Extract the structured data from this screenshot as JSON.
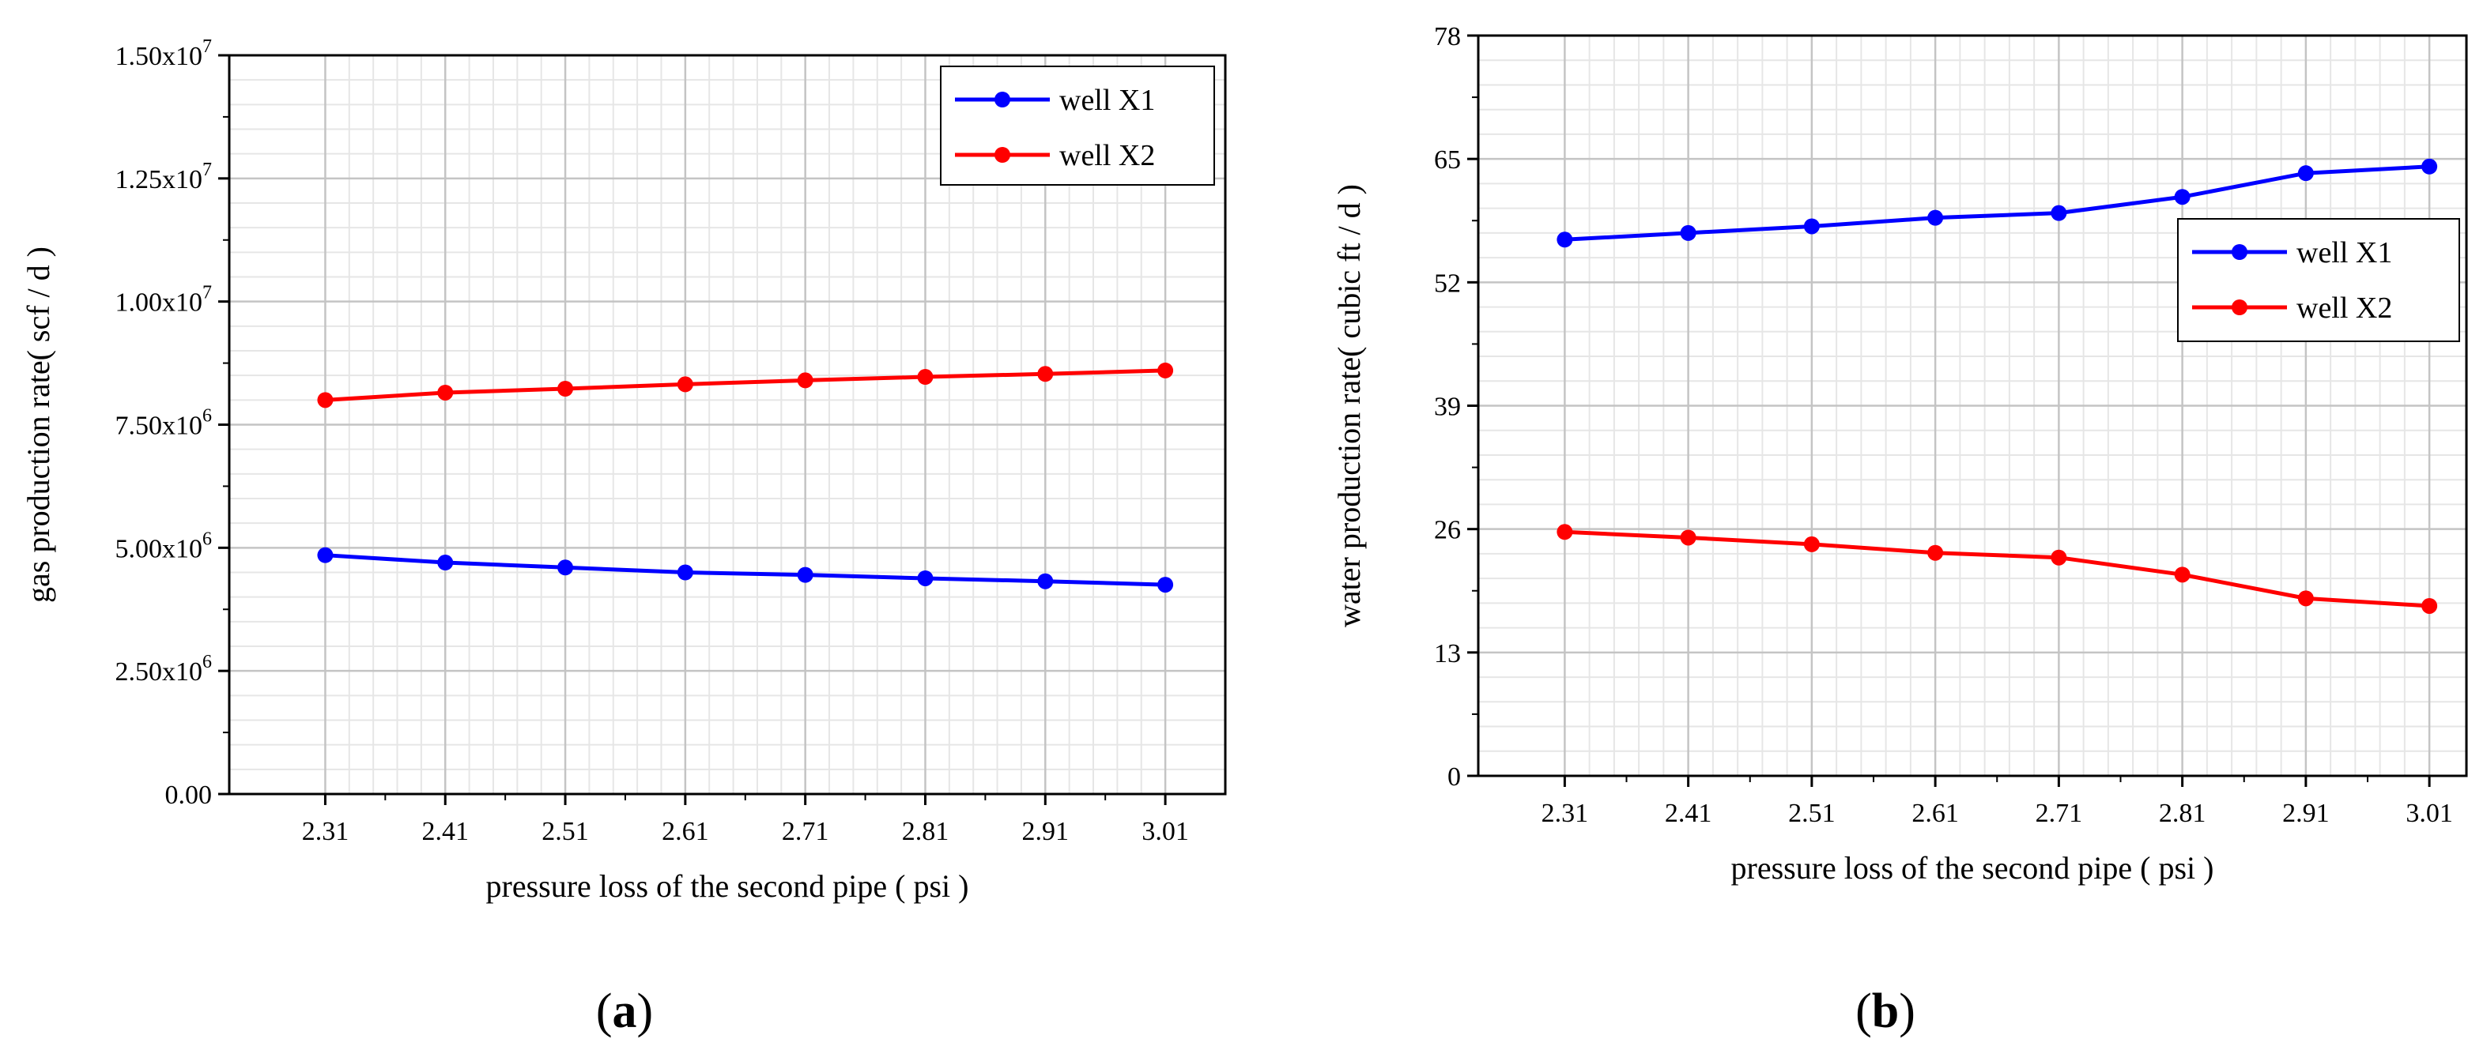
{
  "chart_data": [
    {
      "id": "a",
      "type": "line",
      "panel_label": "a",
      "xlabel": "pressure loss of  the second pipe ( psi )",
      "ylabel": "gas production rate( scf / d )",
      "x_ticks": [
        "2.31",
        "2.41",
        "2.51",
        "2.61",
        "2.71",
        "2.81",
        "2.91",
        "3.01"
      ],
      "x": [
        2.31,
        2.41,
        2.51,
        2.61,
        2.71,
        2.81,
        2.91,
        3.01
      ],
      "xlim": [
        2.23,
        3.06
      ],
      "ylim": [
        0,
        15000000
      ],
      "y_ticks": [
        {
          "value": 0,
          "mantissa": "0.00",
          "exp": ""
        },
        {
          "value": 2500000,
          "mantissa": "2.50x10",
          "exp": "6"
        },
        {
          "value": 5000000,
          "mantissa": "5.00x10",
          "exp": "6"
        },
        {
          "value": 7500000,
          "mantissa": "7.50x10",
          "exp": "6"
        },
        {
          "value": 10000000,
          "mantissa": "1.00x10",
          "exp": "7"
        },
        {
          "value": 12500000,
          "mantissa": "1.25x10",
          "exp": "7"
        },
        {
          "value": 15000000,
          "mantissa": "1.50x10",
          "exp": "7"
        }
      ],
      "legend_position": "top-right",
      "series": [
        {
          "name": "well X1",
          "color": "#0000ff",
          "values": [
            4850000,
            4700000,
            4600000,
            4500000,
            4450000,
            4380000,
            4320000,
            4250000
          ]
        },
        {
          "name": "well X2",
          "color": "#ff0000",
          "values": [
            8000000,
            8150000,
            8230000,
            8320000,
            8400000,
            8470000,
            8530000,
            8600000
          ]
        }
      ],
      "grid": true
    },
    {
      "id": "b",
      "type": "line",
      "panel_label": "b",
      "xlabel": "pressure loss of the second pipe ( psi )",
      "ylabel": "water production rate( cubic ft / d )",
      "x_ticks": [
        "2.31",
        "2.41",
        "2.51",
        "2.61",
        "2.71",
        "2.81",
        "2.91",
        "3.01"
      ],
      "x": [
        2.31,
        2.41,
        2.51,
        2.61,
        2.71,
        2.81,
        2.91,
        3.01
      ],
      "xlim": [
        2.24,
        3.04
      ],
      "ylim": [
        0,
        78
      ],
      "y_ticks": [
        {
          "value": 0,
          "mantissa": "0",
          "exp": ""
        },
        {
          "value": 13,
          "mantissa": "13",
          "exp": ""
        },
        {
          "value": 26,
          "mantissa": "26",
          "exp": ""
        },
        {
          "value": 39,
          "mantissa": "39",
          "exp": ""
        },
        {
          "value": 52,
          "mantissa": "52",
          "exp": ""
        },
        {
          "value": 65,
          "mantissa": "65",
          "exp": ""
        },
        {
          "value": 78,
          "mantissa": "78",
          "exp": ""
        }
      ],
      "legend_position": "center-right",
      "series": [
        {
          "name": "well X1",
          "color": "#0000ff",
          "values": [
            56.5,
            57.2,
            57.9,
            58.8,
            59.3,
            61.0,
            63.5,
            64.2
          ]
        },
        {
          "name": "well X2",
          "color": "#ff0000",
          "values": [
            25.7,
            25.1,
            24.4,
            23.5,
            23.0,
            21.2,
            18.7,
            17.9
          ]
        }
      ],
      "grid": true
    }
  ]
}
